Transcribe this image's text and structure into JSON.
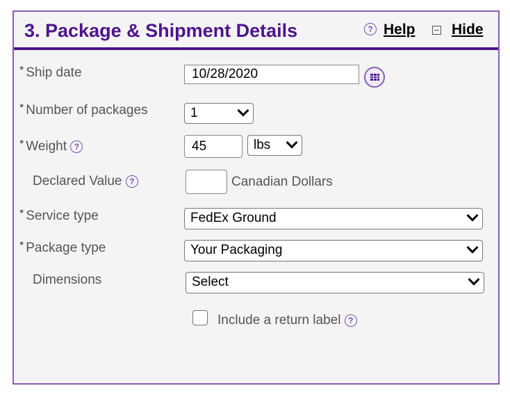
{
  "header": {
    "title": "3. Package & Shipment Details",
    "help": "Help",
    "hide": "Hide"
  },
  "form": {
    "ship_date": {
      "label": "Ship date",
      "value": "10/28/2020"
    },
    "packages": {
      "label": "Number of packages",
      "value": "1"
    },
    "weight": {
      "label": "Weight",
      "value": "45",
      "unit": "lbs"
    },
    "declared": {
      "label": "Declared Value",
      "value": "",
      "currency": "Canadian Dollars"
    },
    "service": {
      "label": "Service type",
      "value": "FedEx Ground"
    },
    "package_type": {
      "label": "Package type",
      "value": "Your Packaging"
    },
    "dimensions": {
      "label": "Dimensions",
      "value": "Select"
    },
    "return_label": {
      "label": "Include a return label",
      "checked": false
    }
  },
  "required_marker": "*",
  "colors": {
    "brand": "#4d148c",
    "border": "#8a5db3"
  }
}
